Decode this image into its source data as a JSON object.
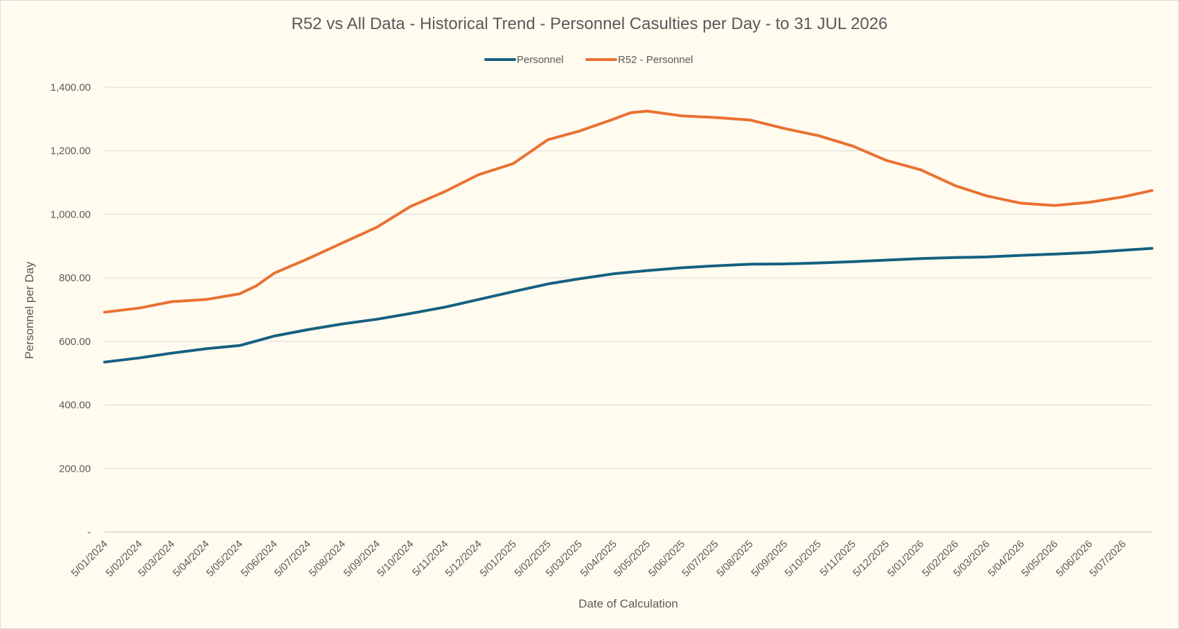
{
  "chart_data": {
    "type": "line",
    "title": "R52 vs All Data - Historical Trend - Personnel Casulties per Day - to 31 JUL 2026",
    "xlabel": "Date of Calculation",
    "ylabel": "Personnel per Day",
    "ylim": [
      0,
      1400
    ],
    "y_ticks": [
      0,
      200,
      400,
      600,
      800,
      1000,
      1200,
      1400
    ],
    "y_tick_labels": [
      "-",
      "200.00",
      "400.00",
      "600.00",
      "800.00",
      "1,000.00",
      "1,200.00",
      "1,400.00"
    ],
    "grid": true,
    "legend_position": "top",
    "x_tick_labels": [
      "5/01/2024",
      "5/02/2024",
      "5/03/2024",
      "5/04/2024",
      "5/05/2024",
      "5/06/2024",
      "5/07/2024",
      "5/08/2024",
      "5/09/2024",
      "5/10/2024",
      "5/11/2024",
      "5/12/2024",
      "5/01/2025",
      "5/02/2025",
      "5/03/2025",
      "5/04/2025",
      "5/05/2025",
      "5/06/2025",
      "5/07/2025",
      "5/08/2025",
      "5/09/2025",
      "5/10/2025",
      "5/11/2025",
      "5/12/2025",
      "5/01/2026",
      "5/02/2026",
      "5/03/2026",
      "5/04/2026",
      "5/05/2026",
      "5/06/2026",
      "5/07/2026"
    ],
    "x_range": [
      "2024-01-05",
      "2026-07-31"
    ],
    "series": [
      {
        "name": "Personnel",
        "color": "#156082",
        "points": [
          [
            "2024-01-05",
            535
          ],
          [
            "2024-02-05",
            548
          ],
          [
            "2024-03-05",
            563
          ],
          [
            "2024-04-05",
            577
          ],
          [
            "2024-05-05",
            587
          ],
          [
            "2024-06-05",
            617
          ],
          [
            "2024-07-05",
            637
          ],
          [
            "2024-08-05",
            655
          ],
          [
            "2024-09-05",
            670
          ],
          [
            "2024-10-05",
            688
          ],
          [
            "2024-11-05",
            708
          ],
          [
            "2024-12-05",
            732
          ],
          [
            "2025-01-05",
            757
          ],
          [
            "2025-02-05",
            781
          ],
          [
            "2025-03-05",
            797
          ],
          [
            "2025-04-05",
            813
          ],
          [
            "2025-05-05",
            823
          ],
          [
            "2025-06-05",
            832
          ],
          [
            "2025-07-05",
            838
          ],
          [
            "2025-08-05",
            843
          ],
          [
            "2025-09-05",
            844
          ],
          [
            "2025-10-05",
            847
          ],
          [
            "2025-11-05",
            851
          ],
          [
            "2025-12-05",
            856
          ],
          [
            "2026-01-05",
            861
          ],
          [
            "2026-02-05",
            864
          ],
          [
            "2026-03-05",
            866
          ],
          [
            "2026-04-05",
            871
          ],
          [
            "2026-05-05",
            875
          ],
          [
            "2026-06-05",
            880
          ],
          [
            "2026-07-05",
            887
          ],
          [
            "2026-07-31",
            893
          ]
        ]
      },
      {
        "name": "R52 - Personnel",
        "color": "#e97132",
        "points": [
          [
            "2024-01-05",
            692
          ],
          [
            "2024-02-05",
            705
          ],
          [
            "2024-03-05",
            725
          ],
          [
            "2024-04-05",
            732
          ],
          [
            "2024-05-05",
            750
          ],
          [
            "2024-05-20",
            775
          ],
          [
            "2024-06-05",
            815
          ],
          [
            "2024-07-05",
            860
          ],
          [
            "2024-08-05",
            910
          ],
          [
            "2024-09-05",
            960
          ],
          [
            "2024-10-05",
            1025
          ],
          [
            "2024-11-05",
            1072
          ],
          [
            "2024-12-05",
            1125
          ],
          [
            "2025-01-05",
            1160
          ],
          [
            "2025-02-05",
            1235
          ],
          [
            "2025-03-05",
            1262
          ],
          [
            "2025-04-05",
            1300
          ],
          [
            "2025-04-20",
            1320
          ],
          [
            "2025-05-05",
            1325
          ],
          [
            "2025-06-05",
            1310
          ],
          [
            "2025-07-05",
            1305
          ],
          [
            "2025-08-05",
            1297
          ],
          [
            "2025-09-05",
            1270
          ],
          [
            "2025-10-05",
            1248
          ],
          [
            "2025-11-05",
            1215
          ],
          [
            "2025-12-05",
            1170
          ],
          [
            "2026-01-05",
            1140
          ],
          [
            "2026-02-05",
            1090
          ],
          [
            "2026-03-05",
            1058
          ],
          [
            "2026-04-05",
            1035
          ],
          [
            "2026-05-05",
            1028
          ],
          [
            "2026-06-05",
            1038
          ],
          [
            "2026-07-05",
            1055
          ],
          [
            "2026-07-31",
            1075
          ]
        ]
      }
    ]
  }
}
